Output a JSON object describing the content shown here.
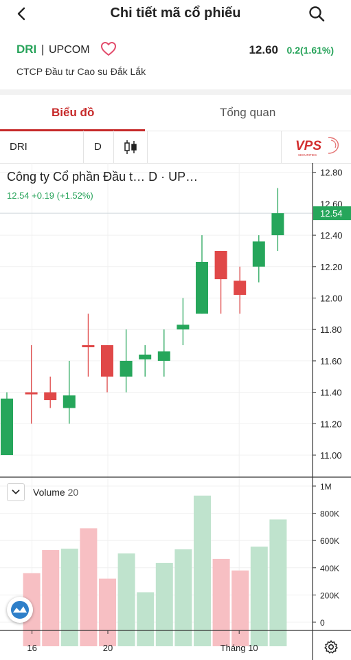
{
  "header": {
    "title": "Chi tiết mã cổ phiếu",
    "back_icon": "chevron-left-icon",
    "search_icon": "search-icon"
  },
  "stock": {
    "symbol": "DRI",
    "separator": "|",
    "exchange": "UPCOM",
    "price": "12.60",
    "change": "0.2(1.61%)",
    "company": "CTCP Đầu tư Cao su Đắk Lắk",
    "favorite_icon": "heart-outline-icon"
  },
  "tabs": [
    {
      "label": "Biểu đồ",
      "active": true
    },
    {
      "label": "Tổng quan",
      "active": false
    }
  ],
  "toolbar": {
    "symbol": "DRI",
    "interval": "D",
    "chart_type_icon": "candlestick-icon",
    "logo_text": "VPS",
    "logo_sub": "SECURITIES"
  },
  "chart": {
    "legend_name": "Công ty Cổ phần Đầu t…   D · UP…",
    "legend_values": "12.54  +0.19 (+1.52%)",
    "volume_label": "Volume",
    "volume_length": "20",
    "current_price_label": "12.54",
    "partial_price_label": "12.60"
  },
  "colors": {
    "up": "#26a65b",
    "down": "#e04848",
    "up_vol": "#bfe3cd",
    "down_vol": "#f7bfc3",
    "accent": "#c62828"
  },
  "chart_data": {
    "type": "candlestick",
    "price_axis": {
      "ticks": [
        "12.80",
        "12.40",
        "12.20",
        "12.00",
        "11.80",
        "11.60",
        "11.40",
        "11.20",
        "11.00"
      ],
      "range": [
        10.86,
        12.86
      ]
    },
    "volume_axis": {
      "ticks": [
        "1M",
        "800K",
        "600K",
        "400K",
        "200K",
        "0"
      ],
      "range": [
        0,
        1000000
      ]
    },
    "time_axis": {
      "ticks": [
        {
          "label": "16",
          "index": 1
        },
        {
          "label": "20",
          "index": 5
        },
        {
          "label": "Tháng 10",
          "index": 12
        }
      ]
    },
    "candles": [
      {
        "o": 11.0,
        "h": 11.4,
        "l": 11.0,
        "c": 11.36
      },
      {
        "o": 11.4,
        "h": 11.7,
        "l": 11.2,
        "c": 11.39
      },
      {
        "o": 11.4,
        "h": 11.5,
        "l": 11.3,
        "c": 11.35
      },
      {
        "o": 11.3,
        "h": 11.6,
        "l": 11.2,
        "c": 11.38
      },
      {
        "o": 11.7,
        "h": 11.9,
        "l": 11.5,
        "c": 11.69
      },
      {
        "o": 11.7,
        "h": 11.7,
        "l": 11.4,
        "c": 11.5
      },
      {
        "o": 11.5,
        "h": 11.8,
        "l": 11.4,
        "c": 11.6
      },
      {
        "o": 11.61,
        "h": 11.7,
        "l": 11.5,
        "c": 11.64
      },
      {
        "o": 11.6,
        "h": 11.8,
        "l": 11.5,
        "c": 11.66
      },
      {
        "o": 11.8,
        "h": 12.0,
        "l": 11.7,
        "c": 11.83
      },
      {
        "o": 11.9,
        "h": 12.4,
        "l": 11.9,
        "c": 12.23
      },
      {
        "o": 12.3,
        "h": 12.3,
        "l": 11.9,
        "c": 12.12
      },
      {
        "o": 12.11,
        "h": 12.2,
        "l": 11.9,
        "c": 12.02
      },
      {
        "o": 12.2,
        "h": 12.4,
        "l": 12.1,
        "c": 12.36
      },
      {
        "o": 12.4,
        "h": 12.7,
        "l": 12.3,
        "c": 12.54
      }
    ],
    "volumes": [
      {
        "v": 580000,
        "up": true
      },
      {
        "v": 360000,
        "up": false
      },
      {
        "v": 530000,
        "up": false
      },
      {
        "v": 540000,
        "up": true
      },
      {
        "v": 690000,
        "up": false
      },
      {
        "v": 320000,
        "up": false
      },
      {
        "v": 505000,
        "up": true
      },
      {
        "v": 220000,
        "up": true
      },
      {
        "v": 435000,
        "up": true
      },
      {
        "v": 535000,
        "up": true
      },
      {
        "v": 930000,
        "up": true
      },
      {
        "v": 465000,
        "up": false
      },
      {
        "v": 380000,
        "up": false
      },
      {
        "v": 555000,
        "up": true
      },
      {
        "v": 755000,
        "up": true
      }
    ]
  }
}
